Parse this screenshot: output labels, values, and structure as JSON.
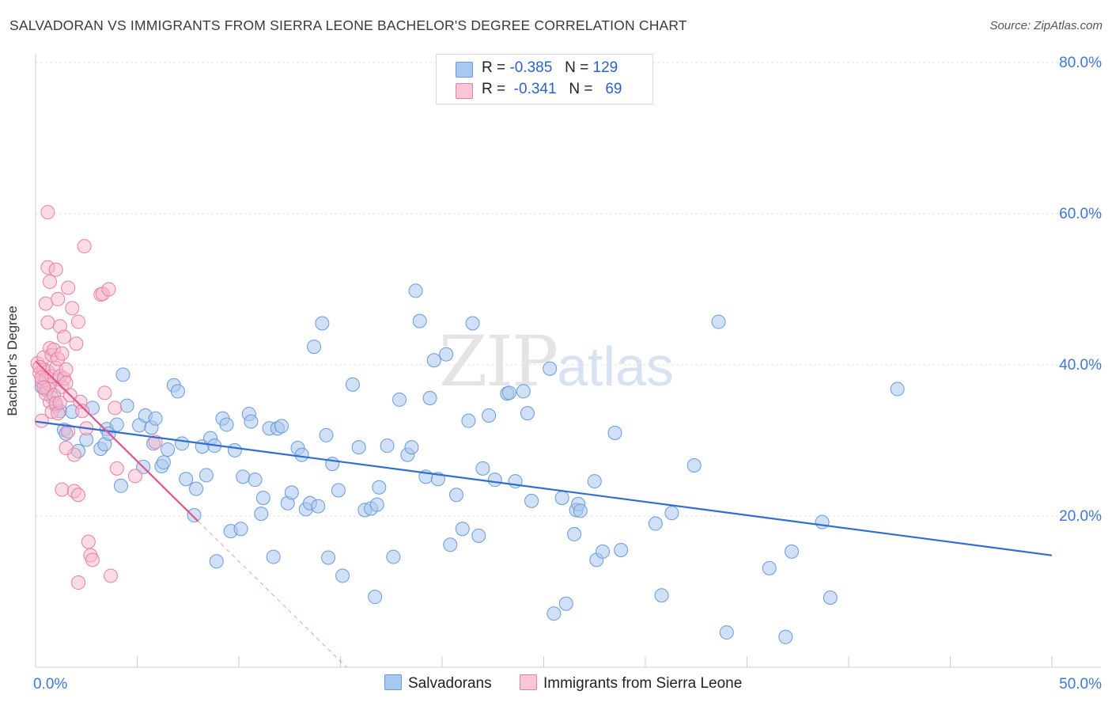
{
  "title": "SALVADORAN VS IMMIGRANTS FROM SIERRA LEONE BACHELOR'S DEGREE CORRELATION CHART",
  "source": "Source: ZipAtlas.com",
  "watermark": {
    "zip": "ZIP",
    "atlas": "atlas"
  },
  "legend": {
    "rows": [
      {
        "r_label": "R =",
        "r_value": "-0.385",
        "n_label": "N =",
        "n_value": "129"
      },
      {
        "r_label": "R =",
        "r_value": "-0.341",
        "n_label": "N =",
        "n_value": "69"
      }
    ]
  },
  "bottom_legend": [
    "Salvadorans",
    "Immigrants from Sierra Leone"
  ],
  "colors": {
    "blue_fill": "#a9c8f0",
    "blue_stroke": "#6a9ad8",
    "blue_line": "#2f6fd0",
    "pink_fill": "#f8b8cc",
    "pink_stroke": "#e87fa1",
    "pink_line": "#e5538a",
    "grid": "#e3e3e3",
    "axis_text": "#3f77d1"
  },
  "chart_data": {
    "type": "scatter",
    "title": "SALVADORAN VS IMMIGRANTS FROM SIERRA LEONE BACHELOR'S DEGREE CORRELATION CHART",
    "xlabel": "",
    "ylabel": "Bachelor's Degree",
    "xlim": [
      0,
      50
    ],
    "ylim": [
      0,
      80
    ],
    "x_tick_labels": [
      "0.0%",
      "50.0%"
    ],
    "y_ticks": [
      20,
      40,
      60,
      80
    ],
    "y_tick_labels": [
      "20.0%",
      "40.0%",
      "60.0%",
      "80.0%"
    ],
    "grid": true,
    "series": [
      {
        "name": "Salvadorans",
        "R": -0.385,
        "N": 129,
        "trend": {
          "x": [
            0,
            50
          ],
          "y": [
            32.5,
            14.8
          ]
        },
        "points": [
          [
            0.3,
            37.1
          ],
          [
            0.5,
            36.7
          ],
          [
            0.8,
            35.7
          ],
          [
            1.0,
            34.6
          ],
          [
            1.1,
            38.1
          ],
          [
            1.2,
            33.9
          ],
          [
            1.4,
            31.4
          ],
          [
            1.5,
            30.9
          ],
          [
            1.8,
            33.8
          ],
          [
            2.1,
            28.6
          ],
          [
            2.5,
            30.1
          ],
          [
            2.8,
            34.3
          ],
          [
            3.2,
            28.9
          ],
          [
            3.4,
            29.5
          ],
          [
            3.5,
            31.5
          ],
          [
            3.6,
            30.9
          ],
          [
            4.0,
            32.1
          ],
          [
            4.2,
            24.0
          ],
          [
            4.3,
            38.7
          ],
          [
            4.5,
            34.6
          ],
          [
            5.1,
            32.0
          ],
          [
            5.3,
            26.5
          ],
          [
            5.4,
            33.3
          ],
          [
            5.7,
            31.7
          ],
          [
            5.8,
            29.6
          ],
          [
            5.9,
            32.9
          ],
          [
            6.2,
            26.6
          ],
          [
            6.3,
            27.1
          ],
          [
            6.5,
            28.8
          ],
          [
            6.8,
            37.3
          ],
          [
            7.0,
            36.5
          ],
          [
            7.2,
            29.6
          ],
          [
            7.4,
            24.9
          ],
          [
            7.8,
            20.1
          ],
          [
            7.9,
            23.6
          ],
          [
            8.2,
            29.2
          ],
          [
            8.4,
            25.4
          ],
          [
            8.6,
            30.3
          ],
          [
            8.8,
            29.3
          ],
          [
            8.9,
            14.0
          ],
          [
            9.2,
            32.9
          ],
          [
            9.4,
            32.1
          ],
          [
            9.6,
            18.0
          ],
          [
            9.8,
            28.7
          ],
          [
            10.1,
            18.3
          ],
          [
            10.2,
            25.2
          ],
          [
            10.5,
            33.5
          ],
          [
            10.6,
            32.5
          ],
          [
            10.8,
            24.8
          ],
          [
            11.1,
            20.3
          ],
          [
            11.2,
            22.4
          ],
          [
            11.5,
            31.6
          ],
          [
            11.7,
            14.6
          ],
          [
            11.9,
            31.6
          ],
          [
            12.1,
            31.9
          ],
          [
            12.4,
            21.7
          ],
          [
            12.6,
            23.1
          ],
          [
            12.9,
            29.0
          ],
          [
            13.1,
            28.1
          ],
          [
            13.3,
            20.9
          ],
          [
            13.5,
            21.7
          ],
          [
            13.7,
            42.4
          ],
          [
            13.9,
            21.3
          ],
          [
            14.1,
            45.5
          ],
          [
            14.3,
            30.7
          ],
          [
            14.4,
            14.5
          ],
          [
            14.6,
            26.9
          ],
          [
            14.9,
            23.4
          ],
          [
            15.1,
            12.1
          ],
          [
            15.6,
            37.4
          ],
          [
            15.9,
            29.1
          ],
          [
            16.2,
            20.8
          ],
          [
            16.5,
            21.0
          ],
          [
            16.7,
            9.3
          ],
          [
            16.8,
            21.5
          ],
          [
            16.9,
            23.8
          ],
          [
            17.3,
            29.3
          ],
          [
            17.6,
            14.6
          ],
          [
            17.9,
            35.4
          ],
          [
            18.3,
            28.1
          ],
          [
            18.5,
            29.1
          ],
          [
            18.7,
            49.8
          ],
          [
            18.9,
            45.8
          ],
          [
            19.2,
            25.2
          ],
          [
            19.4,
            35.6
          ],
          [
            19.6,
            40.6
          ],
          [
            19.8,
            24.9
          ],
          [
            20.2,
            41.4
          ],
          [
            20.4,
            16.2
          ],
          [
            20.7,
            22.8
          ],
          [
            21.0,
            18.3
          ],
          [
            21.3,
            32.6
          ],
          [
            21.5,
            45.5
          ],
          [
            21.8,
            17.4
          ],
          [
            22.0,
            26.3
          ],
          [
            22.3,
            33.3
          ],
          [
            22.6,
            24.8
          ],
          [
            23.2,
            36.2
          ],
          [
            23.3,
            36.3
          ],
          [
            23.6,
            24.6
          ],
          [
            24.0,
            36.5
          ],
          [
            24.2,
            33.6
          ],
          [
            24.4,
            22.0
          ],
          [
            25.3,
            39.5
          ],
          [
            25.5,
            7.1
          ],
          [
            25.9,
            22.4
          ],
          [
            26.1,
            8.4
          ],
          [
            26.5,
            17.6
          ],
          [
            26.6,
            20.8
          ],
          [
            26.7,
            21.6
          ],
          [
            26.8,
            20.7
          ],
          [
            27.5,
            24.6
          ],
          [
            27.6,
            14.2
          ],
          [
            27.9,
            15.3
          ],
          [
            28.5,
            31.0
          ],
          [
            28.8,
            15.5
          ],
          [
            30.5,
            19.0
          ],
          [
            30.8,
            9.5
          ],
          [
            31.3,
            20.4
          ],
          [
            32.4,
            26.7
          ],
          [
            33.6,
            45.7
          ],
          [
            34.0,
            4.6
          ],
          [
            36.1,
            13.1
          ],
          [
            36.9,
            4.0
          ],
          [
            37.2,
            15.3
          ],
          [
            38.7,
            19.2
          ],
          [
            39.1,
            9.2
          ],
          [
            42.4,
            36.8
          ]
        ]
      },
      {
        "name": "Immigrants from Sierra Leone",
        "R": -0.341,
        "N": 69,
        "trend": {
          "x": [
            0,
            8
          ],
          "y": [
            40.5,
            19.3
          ]
        },
        "trend_extended": {
          "x": [
            8,
            15.3
          ],
          "y": [
            19.3,
            0
          ]
        },
        "points": [
          [
            0.1,
            40.2
          ],
          [
            0.2,
            38.9
          ],
          [
            0.3,
            37.8
          ],
          [
            0.4,
            39.4
          ],
          [
            0.5,
            38.0
          ],
          [
            0.6,
            36.9
          ],
          [
            0.7,
            35.1
          ],
          [
            0.8,
            33.8
          ],
          [
            0.3,
            32.6
          ],
          [
            0.4,
            41.0
          ],
          [
            0.5,
            36.2
          ],
          [
            0.6,
            39.1
          ],
          [
            0.7,
            37.4
          ],
          [
            0.8,
            38.5
          ],
          [
            0.9,
            36.0
          ],
          [
            1.0,
            34.9
          ],
          [
            1.1,
            33.6
          ],
          [
            1.2,
            35.0
          ],
          [
            1.3,
            37.1
          ],
          [
            0.2,
            39.7
          ],
          [
            0.3,
            38.3
          ],
          [
            0.4,
            37.0
          ],
          [
            0.6,
            52.9
          ],
          [
            0.7,
            51.0
          ],
          [
            0.6,
            60.2
          ],
          [
            0.5,
            48.1
          ],
          [
            0.6,
            45.6
          ],
          [
            0.7,
            42.2
          ],
          [
            0.8,
            41.3
          ],
          [
            0.9,
            42.0
          ],
          [
            1.0,
            39.6
          ],
          [
            1.1,
            40.8
          ],
          [
            1.2,
            38.5
          ],
          [
            1.3,
            41.5
          ],
          [
            1.4,
            38.2
          ],
          [
            1.5,
            37.6
          ],
          [
            1.6,
            31.2
          ],
          [
            1.0,
            52.6
          ],
          [
            1.1,
            48.7
          ],
          [
            1.2,
            45.1
          ],
          [
            1.4,
            43.7
          ],
          [
            1.5,
            39.4
          ],
          [
            1.6,
            50.2
          ],
          [
            1.7,
            36.0
          ],
          [
            1.8,
            47.5
          ],
          [
            1.9,
            28.1
          ],
          [
            2.0,
            42.8
          ],
          [
            2.1,
            45.7
          ],
          [
            2.2,
            35.1
          ],
          [
            2.3,
            33.9
          ],
          [
            2.4,
            55.7
          ],
          [
            2.5,
            31.6
          ],
          [
            2.6,
            16.6
          ],
          [
            2.7,
            14.8
          ],
          [
            2.8,
            14.2
          ],
          [
            1.5,
            29.0
          ],
          [
            1.3,
            23.5
          ],
          [
            1.9,
            23.3
          ],
          [
            2.1,
            22.8
          ],
          [
            2.1,
            11.2
          ],
          [
            3.2,
            49.3
          ],
          [
            3.3,
            49.4
          ],
          [
            3.4,
            36.3
          ],
          [
            3.6,
            50.0
          ],
          [
            3.7,
            12.1
          ],
          [
            3.9,
            34.3
          ],
          [
            4.0,
            26.3
          ],
          [
            4.9,
            25.3
          ],
          [
            5.9,
            29.8
          ]
        ]
      }
    ]
  }
}
